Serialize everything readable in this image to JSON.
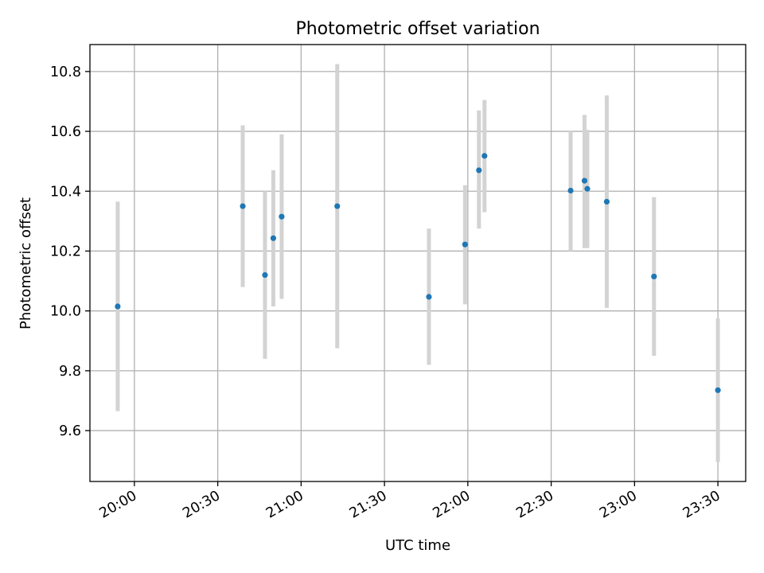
{
  "chart_data": {
    "type": "scatter",
    "title": "Photometric offset variation",
    "xlabel": "UTC time",
    "ylabel": "Photometric offset",
    "x_is_time": true,
    "xlim": [
      "19:44",
      "23:40"
    ],
    "ylim": [
      9.43,
      10.89
    ],
    "x_ticks": [
      "20:00",
      "20:30",
      "21:00",
      "21:30",
      "22:00",
      "22:30",
      "23:00",
      "23:30"
    ],
    "y_ticks": [
      9.6,
      9.8,
      10.0,
      10.2,
      10.4,
      10.6,
      10.8
    ],
    "y_tick_labels": [
      "9.6",
      "9.8",
      "10.0",
      "10.2",
      "10.4",
      "10.6",
      "10.8"
    ],
    "grid": true,
    "point_color": "#1f77b4",
    "errorbar_color": "#d3d3d3",
    "series": [
      {
        "points": [
          {
            "x": "19:54",
            "y": 10.015,
            "err_low": 9.665,
            "err_high": 10.365
          },
          {
            "x": "20:39",
            "y": 10.35,
            "err_low": 10.08,
            "err_high": 10.62
          },
          {
            "x": "20:47",
            "y": 10.12,
            "err_low": 9.84,
            "err_high": 10.4
          },
          {
            "x": "20:50",
            "y": 10.243,
            "err_low": 10.015,
            "err_high": 10.47
          },
          {
            "x": "20:53",
            "y": 10.315,
            "err_low": 10.04,
            "err_high": 10.59
          },
          {
            "x": "21:13",
            "y": 10.35,
            "err_low": 9.875,
            "err_high": 10.825
          },
          {
            "x": "21:46",
            "y": 10.047,
            "err_low": 9.82,
            "err_high": 10.275
          },
          {
            "x": "21:59",
            "y": 10.222,
            "err_low": 10.022,
            "err_high": 10.42
          },
          {
            "x": "22:04",
            "y": 10.47,
            "err_low": 10.275,
            "err_high": 10.67
          },
          {
            "x": "22:06",
            "y": 10.518,
            "err_low": 10.33,
            "err_high": 10.705
          },
          {
            "x": "22:37",
            "y": 10.402,
            "err_low": 10.2,
            "err_high": 10.6
          },
          {
            "x": "22:42",
            "y": 10.435,
            "err_low": 10.21,
            "err_high": 10.655
          },
          {
            "x": "22:43",
            "y": 10.408,
            "err_low": 10.21,
            "err_high": 10.605
          },
          {
            "x": "22:50",
            "y": 10.365,
            "err_low": 10.01,
            "err_high": 10.72
          },
          {
            "x": "23:07",
            "y": 10.115,
            "err_low": 9.85,
            "err_high": 10.38
          },
          {
            "x": "23:30",
            "y": 9.735,
            "err_low": 9.495,
            "err_high": 9.975
          }
        ]
      }
    ]
  }
}
